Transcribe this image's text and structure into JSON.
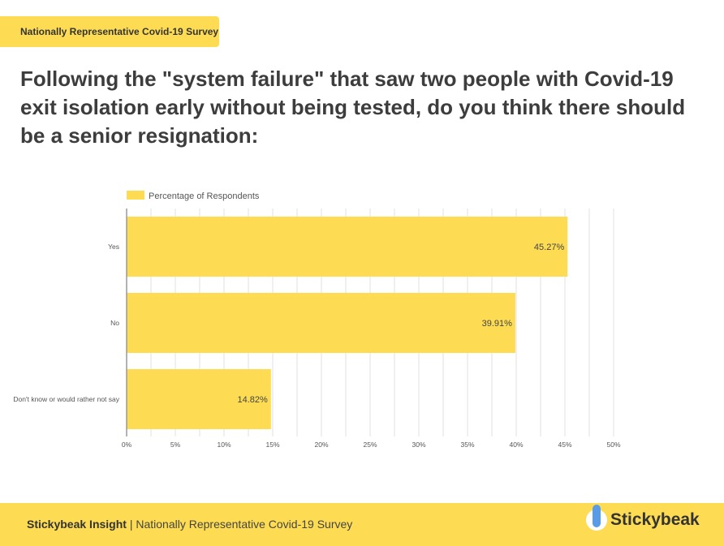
{
  "tag": "Nationally Representative Covid-19 Survey",
  "title": "Following the \"system failure\" that saw two people with Covid-19 exit isolation early without being tested, do you think there should be a senior resignation:",
  "footer": {
    "brand": "Stickybeak Insight",
    "separator": " | ",
    "text": "Nationally Representative Covid-19 Survey",
    "logo": "Stickybeak"
  },
  "chart_data": {
    "type": "bar",
    "orientation": "horizontal",
    "categories": [
      "Yes",
      "No",
      "Don't know or would rather not say"
    ],
    "series": [
      {
        "name": "Percentage of Respondents",
        "values": [
          45.27,
          39.91,
          14.82
        ],
        "labels": [
          "45.27%",
          "39.91%",
          "14.82%"
        ],
        "color": "#fddc54"
      }
    ],
    "xlim": [
      0,
      50
    ],
    "xticks": [
      "0%",
      "5%",
      "10%",
      "15%",
      "20%",
      "25%",
      "30%",
      "35%",
      "40%",
      "45%",
      "50%"
    ],
    "legend": "top-left",
    "grid": true
  }
}
